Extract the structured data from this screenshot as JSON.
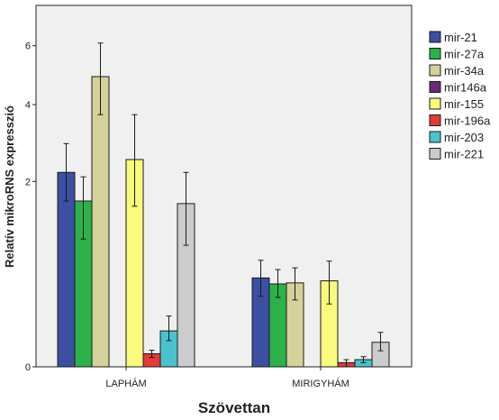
{
  "chart_data": {
    "type": "bar",
    "title": "",
    "xlabel": "Szövettan",
    "ylabel": "Relatív mikroRNS expresszió",
    "y_scale": "sqrt",
    "ylim": [
      0,
      7.6
    ],
    "yticks": [
      0,
      2,
      4,
      6
    ],
    "grid": false,
    "legend_position": "right",
    "categories": [
      "LAPHÁM",
      "MIRIGYHÁM"
    ],
    "series": [
      {
        "name": "mir-21",
        "color": "#3c4fa3",
        "values": [
          2.2,
          0.46
        ],
        "err_low": [
          1.6,
          0.29
        ],
        "err_high": [
          2.9,
          0.66
        ]
      },
      {
        "name": "mir-27a",
        "color": "#2db14b",
        "values": [
          1.6,
          0.4
        ],
        "err_low": [
          0.95,
          0.28
        ],
        "err_high": [
          2.1,
          0.55
        ]
      },
      {
        "name": "mir-34a",
        "color": "#d5d19a",
        "values": [
          4.9,
          0.41
        ],
        "err_low": [
          3.7,
          0.26
        ],
        "err_high": [
          6.1,
          0.57
        ]
      },
      {
        "name": "mir146a",
        "color": "#6b2a75",
        "values": [
          0,
          0
        ],
        "err_low": [
          0,
          0
        ],
        "err_high": [
          0,
          0
        ]
      },
      {
        "name": "mir-155",
        "color": "#fafa7d",
        "values": [
          2.5,
          0.43
        ],
        "err_low": [
          1.5,
          0.23
        ],
        "err_high": [
          3.7,
          0.65
        ]
      },
      {
        "name": "mir-196a",
        "color": "#e53935",
        "values": [
          0.01,
          0.001
        ],
        "err_low": [
          0.005,
          0
        ],
        "err_high": [
          0.016,
          0.003
        ]
      },
      {
        "name": "mir-203",
        "color": "#49c4cf",
        "values": [
          0.075,
          0.003
        ],
        "err_low": [
          0.04,
          0.001
        ],
        "err_high": [
          0.15,
          0.006
        ]
      },
      {
        "name": "mir-221",
        "color": "#cccccc",
        "values": [
          1.55,
          0.035
        ],
        "err_low": [
          0.86,
          0.015
        ],
        "err_high": [
          2.2,
          0.069
        ]
      }
    ]
  }
}
